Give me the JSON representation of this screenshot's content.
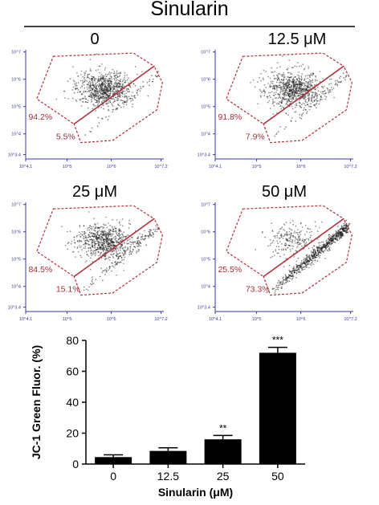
{
  "header": {
    "title": "Sinularin"
  },
  "chart_data": [
    {
      "type": "scatter",
      "panels": [
        {
          "label": "0",
          "upper_pct": "94.2%",
          "lower_pct": "5.5%",
          "upper_fraction": 0.942,
          "lower_fraction": 0.055
        },
        {
          "label": "12.5 μM",
          "upper_pct": "91.8%",
          "lower_pct": "7.9%",
          "upper_fraction": 0.918,
          "lower_fraction": 0.079
        },
        {
          "label": "25 μM",
          "upper_pct": "84.5%",
          "lower_pct": "15.1%",
          "upper_fraction": 0.845,
          "lower_fraction": 0.151
        },
        {
          "label": "50 μM",
          "upper_pct": "25.5%",
          "lower_pct": "73.3%",
          "upper_fraction": 0.255,
          "lower_fraction": 0.733
        }
      ],
      "x_ticks": [
        "10^4.1",
        "10^5",
        "10^6",
        "10^7.2"
      ],
      "y_ticks": [
        "10^3.4",
        "10^4",
        "10^5",
        "10^6",
        "10^7"
      ]
    },
    {
      "type": "bar",
      "categories": [
        "0",
        "12.5",
        "25",
        "50"
      ],
      "values": [
        4.5,
        8.5,
        16,
        72
      ],
      "errors": [
        1.5,
        2,
        2.5,
        3.5
      ],
      "significance": [
        "",
        "",
        "**",
        "***"
      ],
      "xlabel": "Sinularin (μM)",
      "ylabel": "JC-1 Green Fluor. (%)",
      "ylim": [
        0,
        80
      ],
      "yticks": [
        0,
        20,
        40,
        60,
        80
      ]
    }
  ]
}
